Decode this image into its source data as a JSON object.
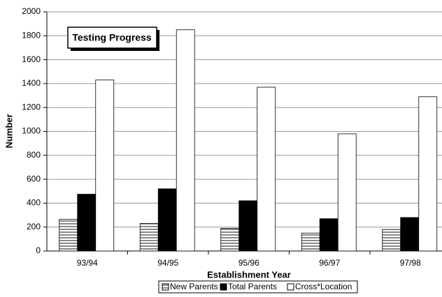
{
  "chart_data": {
    "type": "bar",
    "title": "Testing Progress",
    "x_label": "Establishment Year",
    "y_label": "Number",
    "categories": [
      "93/94",
      "94/95",
      "95/96",
      "96/97",
      "97/98"
    ],
    "series": [
      {
        "name": "New Parents",
        "color": "#555555",
        "pattern": "horizontal-lines",
        "values": [
          265,
          230,
          190,
          150,
          180
        ]
      },
      {
        "name": "Total Parents",
        "color": "#000000",
        "values": [
          475,
          520,
          420,
          270,
          280
        ]
      },
      {
        "name": "Cross*Location",
        "color": "#ffffff",
        "values": [
          1430,
          1850,
          1370,
          980,
          1290
        ]
      }
    ],
    "ylim": [
      0,
      2000
    ],
    "yticks": [
      0,
      200,
      400,
      600,
      800,
      1000,
      1200,
      1400,
      1600,
      1800,
      2000
    ],
    "grid": true,
    "legend": "bottom"
  }
}
